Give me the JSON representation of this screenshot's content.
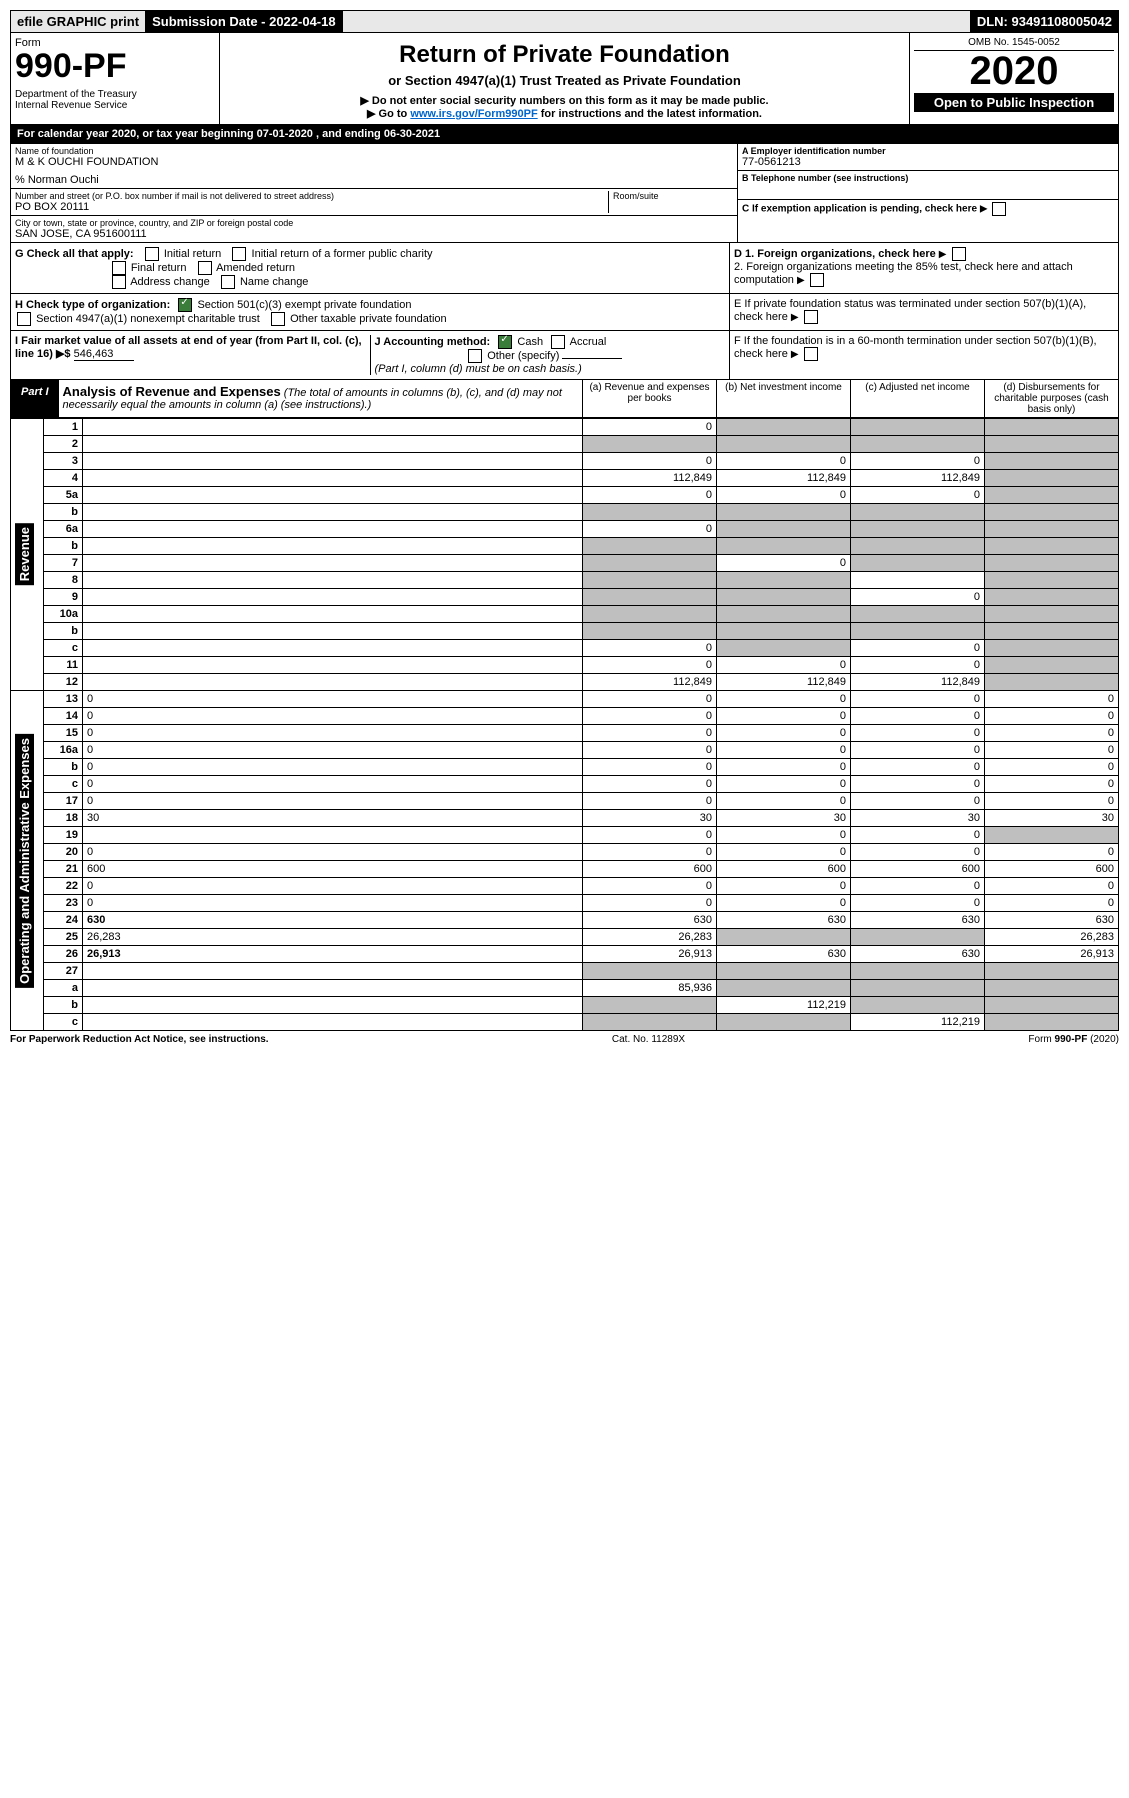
{
  "topbar": {
    "efile": "efile GRAPHIC print",
    "sub_label": "Submission Date - 2022-04-18",
    "dln": "DLN: 93491108005042"
  },
  "header": {
    "form_word": "Form",
    "form_no": "990-PF",
    "dept": "Department of the Treasury\nInternal Revenue Service",
    "title": "Return of Private Foundation",
    "subtitle": "or Section 4947(a)(1) Trust Treated as Private Foundation",
    "note1": "▶ Do not enter social security numbers on this form as it may be made public.",
    "note2_pre": "▶ Go to ",
    "note2_link": "www.irs.gov/Form990PF",
    "note2_post": " for instructions and the latest information.",
    "omb": "OMB No. 1545-0052",
    "year": "2020",
    "open": "Open to Public Inspection"
  },
  "cal": {
    "text_pre": "For calendar year 2020, or tax year beginning ",
    "begin": "07-01-2020",
    "mid": " , and ending ",
    "end": "06-30-2021"
  },
  "info": {
    "name_lbl": "Name of foundation",
    "name": "M & K OUCHI FOUNDATION",
    "care": "% Norman Ouchi",
    "addr_lbl": "Number and street (or P.O. box number if mail is not delivered to street address)",
    "addr": "PO BOX 20111",
    "room_lbl": "Room/suite",
    "city_lbl": "City or town, state or province, country, and ZIP or foreign postal code",
    "city": "SAN JOSE, CA  951600111",
    "ein_lbl": "A Employer identification number",
    "ein": "77-0561213",
    "phone_lbl": "B Telephone number (see instructions)",
    "c_lbl": "C If exemption application is pending, check here",
    "d1": "D 1. Foreign organizations, check here",
    "d2": "2. Foreign organizations meeting the 85% test, check here and attach computation",
    "e": "E  If private foundation status was terminated under section 507(b)(1)(A), check here",
    "f": "F  If the foundation is in a 60-month termination under section 507(b)(1)(B), check here"
  },
  "g": {
    "lbl": "G Check all that apply:",
    "o1": "Initial return",
    "o2": "Final return",
    "o3": "Address change",
    "o4": "Initial return of a former public charity",
    "o5": "Amended return",
    "o6": "Name change"
  },
  "h": {
    "lbl": "H Check type of organization:",
    "o1": "Section 501(c)(3) exempt private foundation",
    "o2": "Section 4947(a)(1) nonexempt charitable trust",
    "o3": "Other taxable private foundation"
  },
  "i": {
    "lbl": "I Fair market value of all assets at end of year (from Part II, col. (c), line 16) ▶$ ",
    "val": "546,463"
  },
  "j": {
    "lbl": "J Accounting method:",
    "o1": "Cash",
    "o2": "Accrual",
    "o3": "Other (specify)",
    "note": "(Part I, column (d) must be on cash basis.)"
  },
  "part1": {
    "tab": "Part I",
    "title": "Analysis of Revenue and Expenses",
    "title_note": " (The total of amounts in columns (b), (c), and (d) may not necessarily equal the amounts in column (a) (see instructions).)",
    "col_a": "(a) Revenue and expenses per books",
    "col_b": "(b) Net investment income",
    "col_c": "(c) Adjusted net income",
    "col_d": "(d) Disbursements for charitable purposes (cash basis only)"
  },
  "side": {
    "rev": "Revenue",
    "exp": "Operating and Administrative Expenses"
  },
  "rows": [
    {
      "n": "1",
      "d": "",
      "a": "0",
      "b": "",
      "c": "",
      "shade": [
        "b",
        "c",
        "d"
      ]
    },
    {
      "n": "2",
      "d": "",
      "a": "",
      "b": "",
      "c": "",
      "shade": [
        "a",
        "b",
        "c",
        "d"
      ]
    },
    {
      "n": "3",
      "d": "",
      "a": "0",
      "b": "0",
      "c": "0",
      "shade": [
        "d"
      ]
    },
    {
      "n": "4",
      "d": "",
      "a": "112,849",
      "b": "112,849",
      "c": "112,849",
      "shade": [
        "d"
      ]
    },
    {
      "n": "5a",
      "d": "",
      "a": "0",
      "b": "0",
      "c": "0",
      "shade": [
        "d"
      ]
    },
    {
      "n": "b",
      "d": "",
      "a": "",
      "b": "",
      "c": "",
      "shade": [
        "a",
        "b",
        "c",
        "d"
      ]
    },
    {
      "n": "6a",
      "d": "",
      "a": "0",
      "b": "",
      "c": "",
      "shade": [
        "b",
        "c",
        "d"
      ]
    },
    {
      "n": "b",
      "d": "",
      "a": "",
      "b": "",
      "c": "",
      "shade": [
        "a",
        "b",
        "c",
        "d"
      ]
    },
    {
      "n": "7",
      "d": "",
      "a": "",
      "b": "0",
      "c": "",
      "shade": [
        "a",
        "c",
        "d"
      ]
    },
    {
      "n": "8",
      "d": "",
      "a": "",
      "b": "",
      "c": "",
      "shade": [
        "a",
        "b",
        "d"
      ]
    },
    {
      "n": "9",
      "d": "",
      "a": "",
      "b": "",
      "c": "0",
      "shade": [
        "a",
        "b",
        "d"
      ]
    },
    {
      "n": "10a",
      "d": "",
      "a": "",
      "b": "",
      "c": "",
      "shade": [
        "a",
        "b",
        "c",
        "d"
      ]
    },
    {
      "n": "b",
      "d": "",
      "a": "",
      "b": "",
      "c": "",
      "shade": [
        "a",
        "b",
        "c",
        "d"
      ]
    },
    {
      "n": "c",
      "d": "",
      "a": "0",
      "b": "",
      "c": "0",
      "shade": [
        "b",
        "d"
      ]
    },
    {
      "n": "11",
      "d": "",
      "a": "0",
      "b": "0",
      "c": "0",
      "shade": [
        "d"
      ]
    },
    {
      "n": "12",
      "d": "",
      "a": "112,849",
      "b": "112,849",
      "c": "112,849",
      "shade": [
        "d"
      ],
      "bold": true
    },
    {
      "n": "13",
      "d": "0",
      "a": "0",
      "b": "0",
      "c": "0"
    },
    {
      "n": "14",
      "d": "0",
      "a": "0",
      "b": "0",
      "c": "0"
    },
    {
      "n": "15",
      "d": "0",
      "a": "0",
      "b": "0",
      "c": "0"
    },
    {
      "n": "16a",
      "d": "0",
      "a": "0",
      "b": "0",
      "c": "0"
    },
    {
      "n": "b",
      "d": "0",
      "a": "0",
      "b": "0",
      "c": "0"
    },
    {
      "n": "c",
      "d": "0",
      "a": "0",
      "b": "0",
      "c": "0"
    },
    {
      "n": "17",
      "d": "0",
      "a": "0",
      "b": "0",
      "c": "0"
    },
    {
      "n": "18",
      "d": "30",
      "a": "30",
      "b": "30",
      "c": "30"
    },
    {
      "n": "19",
      "d": "",
      "a": "0",
      "b": "0",
      "c": "0",
      "shade": [
        "d"
      ]
    },
    {
      "n": "20",
      "d": "0",
      "a": "0",
      "b": "0",
      "c": "0"
    },
    {
      "n": "21",
      "d": "600",
      "a": "600",
      "b": "600",
      "c": "600"
    },
    {
      "n": "22",
      "d": "0",
      "a": "0",
      "b": "0",
      "c": "0"
    },
    {
      "n": "23",
      "d": "0",
      "a": "0",
      "b": "0",
      "c": "0"
    },
    {
      "n": "24",
      "d": "630",
      "a": "630",
      "b": "630",
      "c": "630",
      "bold": true
    },
    {
      "n": "25",
      "d": "26,283",
      "a": "26,283",
      "b": "",
      "c": "",
      "shade": [
        "b",
        "c"
      ]
    },
    {
      "n": "26",
      "d": "26,913",
      "a": "26,913",
      "b": "630",
      "c": "630",
      "bold": true
    },
    {
      "n": "27",
      "d": "",
      "a": "",
      "b": "",
      "c": "",
      "shade": [
        "a",
        "b",
        "c",
        "d"
      ]
    },
    {
      "n": "a",
      "d": "",
      "a": "85,936",
      "b": "",
      "c": "",
      "shade": [
        "b",
        "c",
        "d"
      ],
      "bold": true
    },
    {
      "n": "b",
      "d": "",
      "a": "",
      "b": "112,219",
      "c": "",
      "shade": [
        "a",
        "c",
        "d"
      ],
      "bold": true
    },
    {
      "n": "c",
      "d": "",
      "a": "",
      "b": "",
      "c": "112,219",
      "shade": [
        "a",
        "b",
        "d"
      ],
      "bold": true
    }
  ],
  "footer": {
    "left": "For Paperwork Reduction Act Notice, see instructions.",
    "mid": "Cat. No. 11289X",
    "right": "Form 990-PF (2020)"
  }
}
